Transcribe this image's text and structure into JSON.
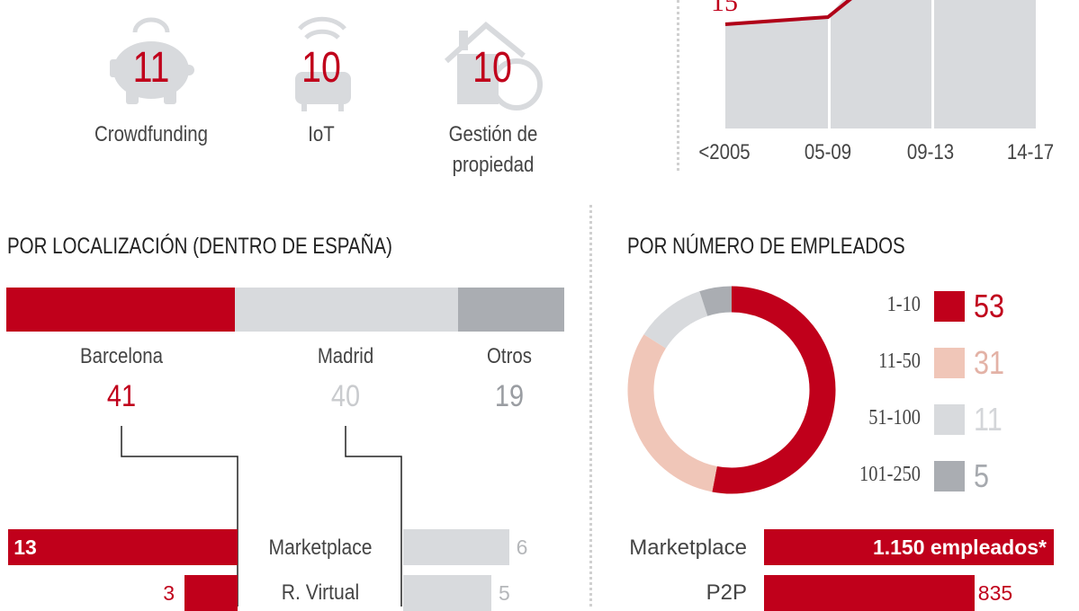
{
  "colors": {
    "red": "#c0001b",
    "light_gray": "#d8dadd",
    "mid_gray": "#aaadb2",
    "salmon": "#f0c6b8",
    "text": "#444444"
  },
  "icons": [
    {
      "icon": "piggy-bank-icon",
      "value": "11",
      "label": "Crowdfunding"
    },
    {
      "icon": "iot-wifi-icon",
      "value": "10",
      "label": "IoT"
    },
    {
      "icon": "house-coin-icon",
      "value": "10",
      "label_line1": "Gestión de",
      "label_line2": "propiedad"
    }
  ],
  "chart_data": [
    {
      "type": "area",
      "title": "",
      "categories": [
        "<2005",
        "05-09",
        "09-13",
        "14-17"
      ],
      "visible_labels": {
        "first_point": "15"
      },
      "series": [
        {
          "name": "line",
          "values": [
            15,
            16,
            null,
            null
          ]
        }
      ],
      "note": "chart partially cropped at top; only first label visible"
    },
    {
      "type": "bar",
      "title": "POR LOCALIZACIÓN (DENTRO DE ESPAÑA)",
      "orientation": "stacked-horizontal",
      "categories": [
        "Barcelona",
        "Madrid",
        "Otros"
      ],
      "values": [
        41,
        40,
        19
      ],
      "colors": [
        "#c0001b",
        "#d8dadd",
        "#aaadb2"
      ]
    },
    {
      "type": "bar",
      "title": "",
      "orientation": "butterfly",
      "categories": [
        "Marketplace",
        "R. Virtual"
      ],
      "series": [
        {
          "name": "Barcelona",
          "values": [
            13,
            3
          ]
        },
        {
          "name": "Madrid",
          "values": [
            6,
            5
          ]
        }
      ]
    },
    {
      "type": "pie",
      "title": "POR NÚMERO DE EMPLEADOS",
      "donut": true,
      "categories": [
        "1-10",
        "11-50",
        "51-100",
        "101-250"
      ],
      "values": [
        53,
        31,
        11,
        5
      ],
      "colors": [
        "#c0001b",
        "#f0c6b8",
        "#d8dadd",
        "#aaadb2"
      ]
    },
    {
      "type": "bar",
      "orientation": "horizontal",
      "categories": [
        "Marketplace",
        "P2P"
      ],
      "values": [
        1150,
        835
      ],
      "value_labels": [
        "1.150 empleados*",
        "835"
      ]
    }
  ]
}
